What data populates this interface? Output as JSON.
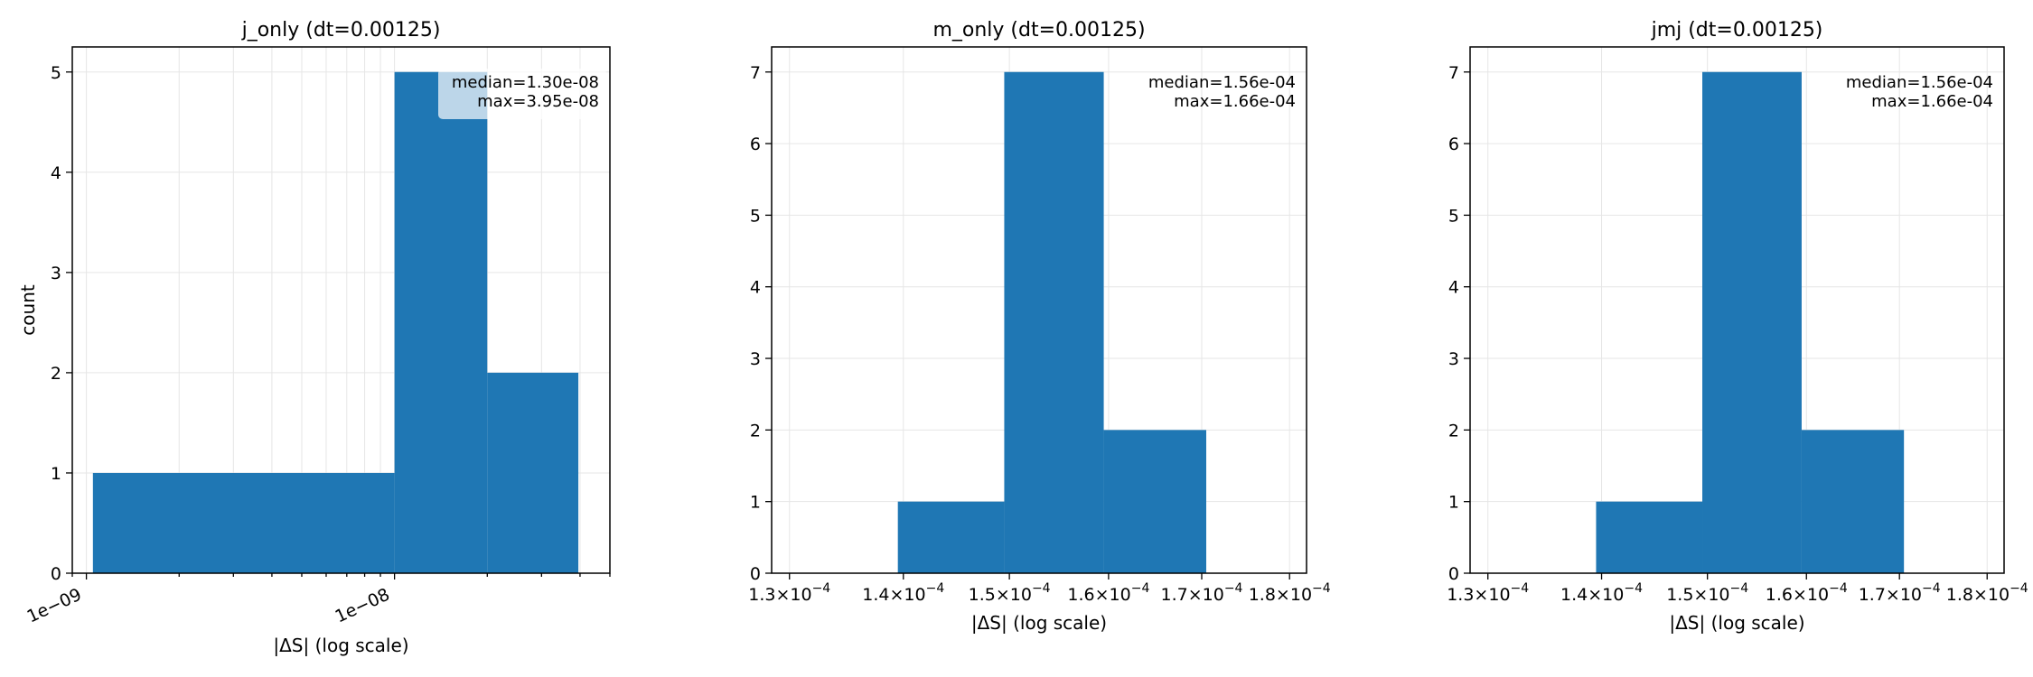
{
  "chart_data": [
    {
      "type": "bar",
      "title": "j_only (dt=0.00125)",
      "xlabel": "|ΔS| (log scale)",
      "ylabel": "count",
      "xscale": "log",
      "xlim": [
        9e-10,
        5e-08
      ],
      "ylim": [
        0,
        5.25
      ],
      "bins": [
        {
          "x0": 1.05e-09,
          "x1": 1e-08,
          "count": 1
        },
        {
          "x0": 1e-08,
          "x1": 2e-08,
          "count": 5
        },
        {
          "x0": 2e-08,
          "x1": 3.95e-08,
          "count": 2
        }
      ],
      "xticks": [
        {
          "value": 1e-09,
          "label": "1e−09"
        },
        {
          "value": 1e-08,
          "label": "1e−08"
        }
      ],
      "yticks": [
        "0",
        "1",
        "2",
        "3",
        "4",
        "5"
      ],
      "annotation": {
        "lines": [
          "median=1.30e-08",
          "max=3.95e-08"
        ],
        "placement": "top-right"
      },
      "grid": true,
      "color": "#1f77b4"
    },
    {
      "type": "bar",
      "title": "m_only (dt=0.00125)",
      "xlabel": "|ΔS| (log scale)",
      "ylabel": "",
      "xscale": "log",
      "xlim": [
        0.0001285,
        0.000182
      ],
      "ylim": [
        0,
        7.35
      ],
      "bins": [
        {
          "x0": 0.0001395,
          "x1": 0.0001495,
          "count": 1
        },
        {
          "x0": 0.0001495,
          "x1": 0.0001595,
          "count": 7
        },
        {
          "x0": 0.0001595,
          "x1": 0.0001705,
          "count": 2
        }
      ],
      "xticks": [
        {
          "value": 0.00013,
          "mantissa": "1.3",
          "exp": "−4"
        },
        {
          "value": 0.00014,
          "mantissa": "1.4",
          "exp": "−4"
        },
        {
          "value": 0.00015,
          "mantissa": "1.5",
          "exp": "−4"
        },
        {
          "value": 0.00016,
          "mantissa": "1.6",
          "exp": "−4"
        },
        {
          "value": 0.00017,
          "mantissa": "1.7",
          "exp": "−4"
        },
        {
          "value": 0.00018,
          "mantissa": "1.8",
          "exp": "−4"
        }
      ],
      "yticks": [
        "0",
        "1",
        "2",
        "3",
        "4",
        "5",
        "6",
        "7"
      ],
      "annotation": {
        "lines": [
          "median=1.56e-04",
          "max=1.66e-04"
        ],
        "placement": "top-right"
      },
      "grid": true,
      "color": "#1f77b4"
    },
    {
      "type": "bar",
      "title": "jmj (dt=0.00125)",
      "xlabel": "|ΔS| (log scale)",
      "ylabel": "",
      "xscale": "log",
      "xlim": [
        0.0001285,
        0.000182
      ],
      "ylim": [
        0,
        7.35
      ],
      "bins": [
        {
          "x0": 0.0001395,
          "x1": 0.0001495,
          "count": 1
        },
        {
          "x0": 0.0001495,
          "x1": 0.0001595,
          "count": 7
        },
        {
          "x0": 0.0001595,
          "x1": 0.0001705,
          "count": 2
        }
      ],
      "xticks": [
        {
          "value": 0.00013,
          "mantissa": "1.3",
          "exp": "−4"
        },
        {
          "value": 0.00014,
          "mantissa": "1.4",
          "exp": "−4"
        },
        {
          "value": 0.00015,
          "mantissa": "1.5",
          "exp": "−4"
        },
        {
          "value": 0.00016,
          "mantissa": "1.6",
          "exp": "−4"
        },
        {
          "value": 0.00017,
          "mantissa": "1.7",
          "exp": "−4"
        },
        {
          "value": 0.00018,
          "mantissa": "1.8",
          "exp": "−4"
        }
      ],
      "yticks": [
        "0",
        "1",
        "2",
        "3",
        "4",
        "5",
        "6",
        "7"
      ],
      "annotation": {
        "lines": [
          "median=1.56e-04",
          "max=1.66e-04"
        ],
        "placement": "top-right"
      },
      "grid": true,
      "color": "#1f77b4"
    }
  ]
}
